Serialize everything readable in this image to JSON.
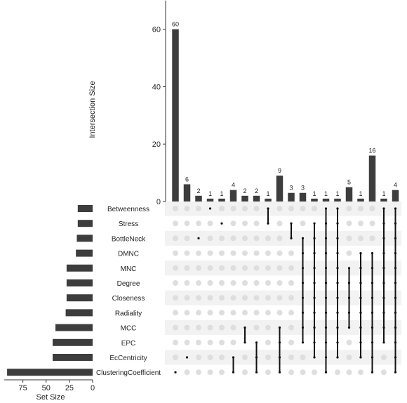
{
  "chart_data": {
    "type": "bar",
    "subtype": "upset",
    "intersection_axis": {
      "label": "Intersection Size",
      "ticks": [
        0,
        20,
        40,
        60
      ],
      "range": [
        0,
        70
      ]
    },
    "set_size_axis": {
      "label": "Set Size",
      "ticks": [
        75,
        50,
        25,
        0
      ],
      "range": [
        0,
        95
      ],
      "reversed": true
    },
    "sets": [
      {
        "name": "Betweenness",
        "size": 16
      },
      {
        "name": "Stress",
        "size": 16
      },
      {
        "name": "BottleNeck",
        "size": 17
      },
      {
        "name": "DMNC",
        "size": 18
      },
      {
        "name": "MNC",
        "size": 28
      },
      {
        "name": "Degree",
        "size": 28
      },
      {
        "name": "Closeness",
        "size": 28
      },
      {
        "name": "Radiality",
        "size": 29
      },
      {
        "name": "MCC",
        "size": 40
      },
      {
        "name": "EPC",
        "size": 43
      },
      {
        "name": "EcCentricity",
        "size": 43
      },
      {
        "name": "ClusteringCoefficient",
        "size": 92
      }
    ],
    "intersections": [
      {
        "size": 60,
        "sets": [
          "ClusteringCoefficient"
        ]
      },
      {
        "size": 6,
        "sets": [
          "EcCentricity"
        ]
      },
      {
        "size": 2,
        "sets": [
          "BottleNeck"
        ]
      },
      {
        "size": 1,
        "sets": [
          "Betweenness"
        ]
      },
      {
        "size": 1,
        "sets": [
          "Stress"
        ]
      },
      {
        "size": 4,
        "sets": [
          "EcCentricity",
          "ClusteringCoefficient"
        ]
      },
      {
        "size": 2,
        "sets": [
          "MCC",
          "EPC"
        ]
      },
      {
        "size": 2,
        "sets": [
          "EPC",
          "EcCentricity",
          "ClusteringCoefficient"
        ]
      },
      {
        "size": 1,
        "sets": [
          "Betweenness",
          "Stress"
        ]
      },
      {
        "size": 9,
        "sets": [
          "MCC",
          "EPC",
          "EcCentricity",
          "ClusteringCoefficient"
        ]
      },
      {
        "size": 3,
        "sets": [
          "Stress",
          "BottleNeck"
        ]
      },
      {
        "size": 3,
        "sets": [
          "BottleNeck",
          "DMNC",
          "MNC",
          "Degree",
          "Closeness",
          "Radiality",
          "MCC",
          "EPC"
        ]
      },
      {
        "size": 1,
        "sets": [
          "Stress",
          "BottleNeck",
          "DMNC",
          "MNC",
          "Degree",
          "Closeness",
          "Radiality",
          "MCC",
          "EPC",
          "EcCentricity"
        ]
      },
      {
        "size": 1,
        "sets": [
          "Betweenness",
          "Stress",
          "BottleNeck",
          "DMNC",
          "MNC",
          "Degree",
          "Closeness",
          "Radiality",
          "MCC",
          "EPC",
          "EcCentricity",
          "ClusteringCoefficient"
        ]
      },
      {
        "size": 1,
        "sets": [
          "Betweenness",
          "Stress",
          "BottleNeck",
          "DMNC",
          "MNC",
          "Degree",
          "Closeness",
          "Radiality",
          "MCC",
          "EPC",
          "EcCentricity"
        ]
      },
      {
        "size": 5,
        "sets": [
          "MNC",
          "Degree",
          "Closeness",
          "Radiality",
          "MCC"
        ]
      },
      {
        "size": 1,
        "sets": [
          "DMNC",
          "MNC",
          "Degree",
          "Closeness",
          "Radiality",
          "MCC",
          "EPC",
          "EcCentricity"
        ]
      },
      {
        "size": 16,
        "sets": [
          "DMNC",
          "MNC",
          "Degree",
          "Closeness",
          "Radiality",
          "MCC",
          "EPC",
          "EcCentricity",
          "ClusteringCoefficient"
        ]
      },
      {
        "size": 1,
        "sets": [
          "Betweenness",
          "Stress",
          "BottleNeck",
          "DMNC",
          "MNC",
          "Degree",
          "Closeness",
          "Radiality",
          "MCC",
          "EPC"
        ]
      },
      {
        "size": 4,
        "sets": [
          "Betweenness",
          "Stress",
          "BottleNeck",
          "DMNC",
          "MNC",
          "Degree",
          "Closeness",
          "Radiality",
          "MCC",
          "EPC",
          "EcCentricity",
          "ClusteringCoefficient"
        ]
      }
    ],
    "grid": false,
    "colors": {
      "bar": "#3d3d3d",
      "dot_active": "#111111",
      "dot_inactive": "#dedede",
      "stripe": "#f2f2f2",
      "axis": "#333333",
      "text": "#222222"
    }
  }
}
